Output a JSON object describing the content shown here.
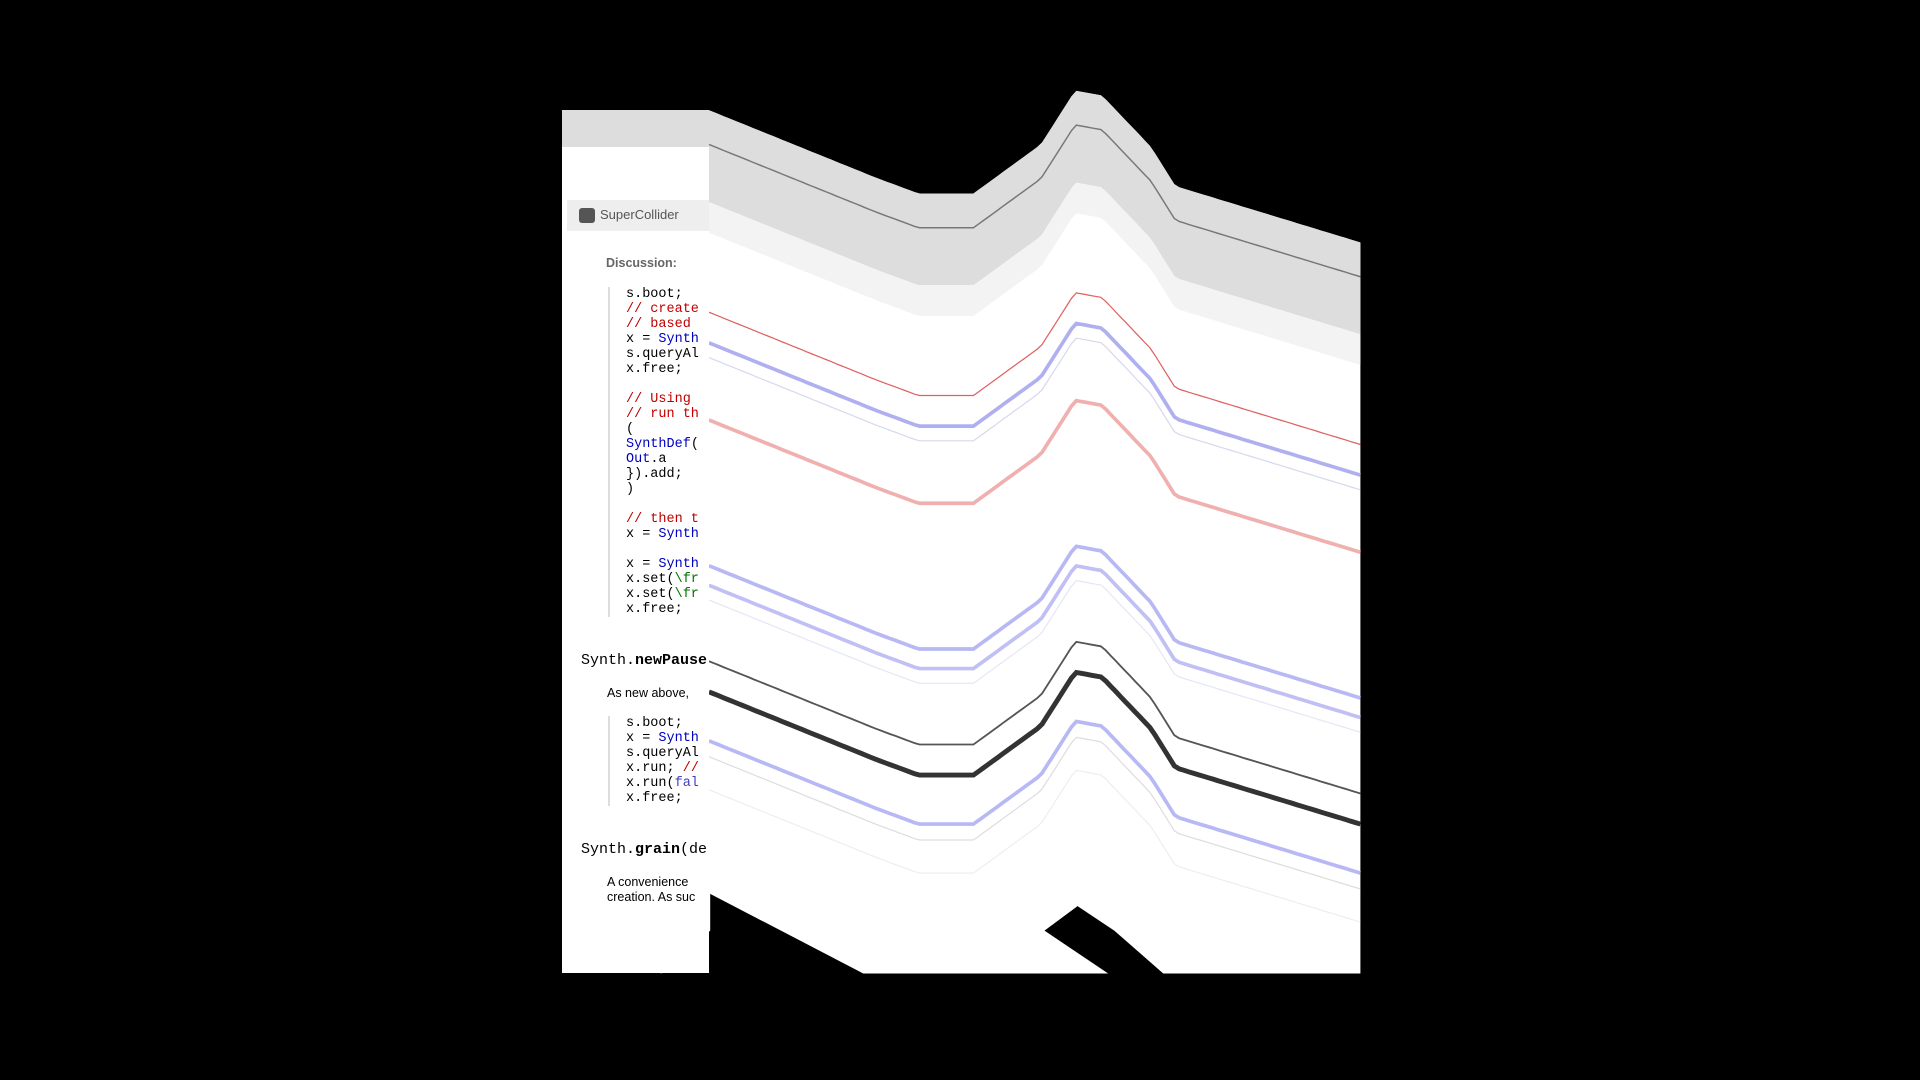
{
  "tab_title": "SuperCollider",
  "discussion_label": "Discussion:",
  "code_block_1": [
    [
      {
        "text": "s.boot;",
        "color": "#000000"
      }
    ],
    [
      {
        "text": "// create",
        "color": "#bf0000"
      }
    ],
    [
      {
        "text": "// based",
        "color": "#bf0000"
      }
    ],
    [
      {
        "text": "x = ",
        "color": "#000000"
      },
      {
        "text": "Synth",
        "color": "#0000bf"
      }
    ],
    [
      {
        "text": "s.queryAl",
        "color": "#000000"
      }
    ],
    [
      {
        "text": "x.free;",
        "color": "#000000"
      }
    ],
    [],
    [
      {
        "text": "// Using",
        "color": "#bf0000"
      }
    ],
    [
      {
        "text": "// run th",
        "color": "#bf0000"
      }
    ],
    [
      {
        "text": "(",
        "color": "#000000"
      }
    ],
    [
      {
        "text": "SynthDef",
        "color": "#0000bf"
      },
      {
        "text": "(",
        "color": "#000000"
      }
    ],
    [
      {
        "text": "    Out",
        "color": "#0000bf"
      },
      {
        "text": ".a",
        "color": "#000000"
      }
    ],
    [
      {
        "text": "}).add;",
        "color": "#000000"
      }
    ],
    [
      {
        "text": ")",
        "color": "#000000"
      }
    ],
    [],
    [
      {
        "text": "// then t",
        "color": "#bf0000"
      }
    ],
    [
      {
        "text": "x = ",
        "color": "#000000"
      },
      {
        "text": "Synth",
        "color": "#0000bf"
      }
    ],
    [],
    [
      {
        "text": "x = ",
        "color": "#000000"
      },
      {
        "text": "Synth",
        "color": "#0000bf"
      }
    ],
    [
      {
        "text": "x.set(",
        "color": "#000000"
      },
      {
        "text": "\\fr",
        "color": "#007300"
      }
    ],
    [
      {
        "text": "x.set(",
        "color": "#000000"
      },
      {
        "text": "\\fr",
        "color": "#007300"
      }
    ],
    [
      {
        "text": "x.free;",
        "color": "#000000"
      }
    ]
  ],
  "method_1": [
    {
      "text": "Synth.",
      "bold": false
    },
    {
      "text": "newPause",
      "bold": true
    }
  ],
  "method_1_description": "As new above,",
  "code_block_2": [
    [
      {
        "text": "s.boot;",
        "color": "#000000"
      }
    ],
    [
      {
        "text": "x = ",
        "color": "#000000"
      },
      {
        "text": "Synth",
        "color": "#0000bf"
      }
    ],
    [
      {
        "text": "s.queryAl",
        "color": "#000000"
      }
    ],
    [
      {
        "text": "x.run; ",
        "color": "#000000"
      },
      {
        "text": "//",
        "color": "#bf0000"
      }
    ],
    [
      {
        "text": "x.run(",
        "color": "#000000"
      },
      {
        "text": "fal",
        "color": "#4040bf"
      }
    ],
    [
      {
        "text": "x.free;",
        "color": "#000000"
      }
    ]
  ],
  "method_2": [
    {
      "text": "Synth.",
      "bold": false
    },
    {
      "text": "grain",
      "bold": true
    },
    {
      "text": "(de",
      "bold": false
    }
  ],
  "method_2_description": [
    "A convenience",
    "creation. As suc"
  ]
}
